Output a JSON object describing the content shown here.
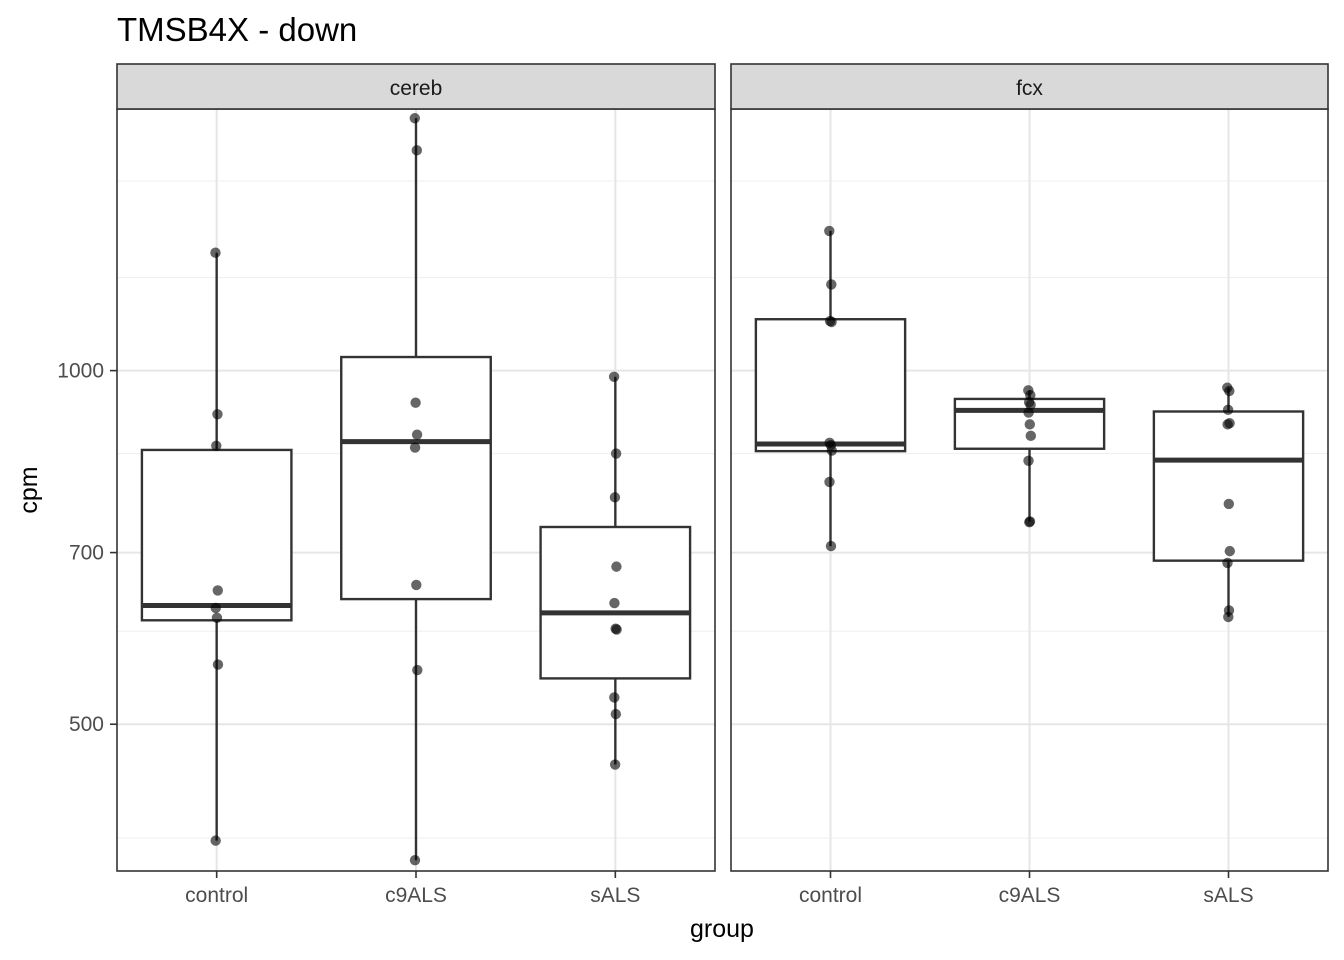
{
  "chart_data": {
    "type": "boxplot",
    "scale": "log10",
    "title": "TMSB4X - down",
    "xlabel": "group",
    "ylabel": "cpm",
    "ylim": [
      375,
      1670
    ],
    "y_ticks": [
      500,
      700,
      1000
    ],
    "y_tick_labels": [
      "500",
      "700",
      "1000"
    ],
    "y_minor_ticks": [
      400,
      600,
      850,
      1200,
      1450
    ],
    "categories": [
      "control",
      "c9ALS",
      "sALS"
    ],
    "panels": [
      {
        "name": "cereb",
        "groups": [
          {
            "group": "control",
            "lower_whisker": 398,
            "q1": 613,
            "median": 631,
            "q3": 856,
            "upper_whisker": 1260,
            "points": [
              1260,
              918,
              863,
              650,
              628,
              616,
              562,
              398
            ]
          },
          {
            "group": "c9ALS",
            "lower_whisker": 383,
            "q1": 639,
            "median": 870,
            "q3": 1027,
            "upper_whisker": 1640,
            "points": [
              1640,
              1540,
              939,
              882,
              860,
              657,
              556,
              383
            ]
          },
          {
            "group": "sALS",
            "lower_whisker": 462,
            "q1": 547,
            "median": 622,
            "q3": 736,
            "upper_whisker": 988,
            "points": [
              988,
              850,
              780,
              681,
              634,
              603,
              602,
              527,
              510,
              462
            ]
          }
        ]
      },
      {
        "name": "fcx",
        "groups": [
          {
            "group": "control",
            "lower_whisker": 709,
            "q1": 854,
            "median": 866,
            "q3": 1106,
            "upper_whisker": 1315,
            "points": [
              1315,
              1184,
              1102,
              1100,
              868,
              864,
              855,
              804,
              709
            ]
          },
          {
            "group": "c9ALS",
            "lower_whisker": 744,
            "q1": 858,
            "median": 925,
            "q3": 946,
            "upper_whisker": 962,
            "points": [
              962,
              953,
              940,
              935,
              921,
              900,
              880,
              838,
              744,
              743
            ]
          },
          {
            "group": "sALS",
            "lower_whisker": 617,
            "q1": 689,
            "median": 839,
            "q3": 923,
            "upper_whisker": 967,
            "points": [
              967,
              961,
              926,
              902,
              900,
              770,
              702,
              686,
              625,
              617
            ]
          }
        ]
      }
    ]
  }
}
